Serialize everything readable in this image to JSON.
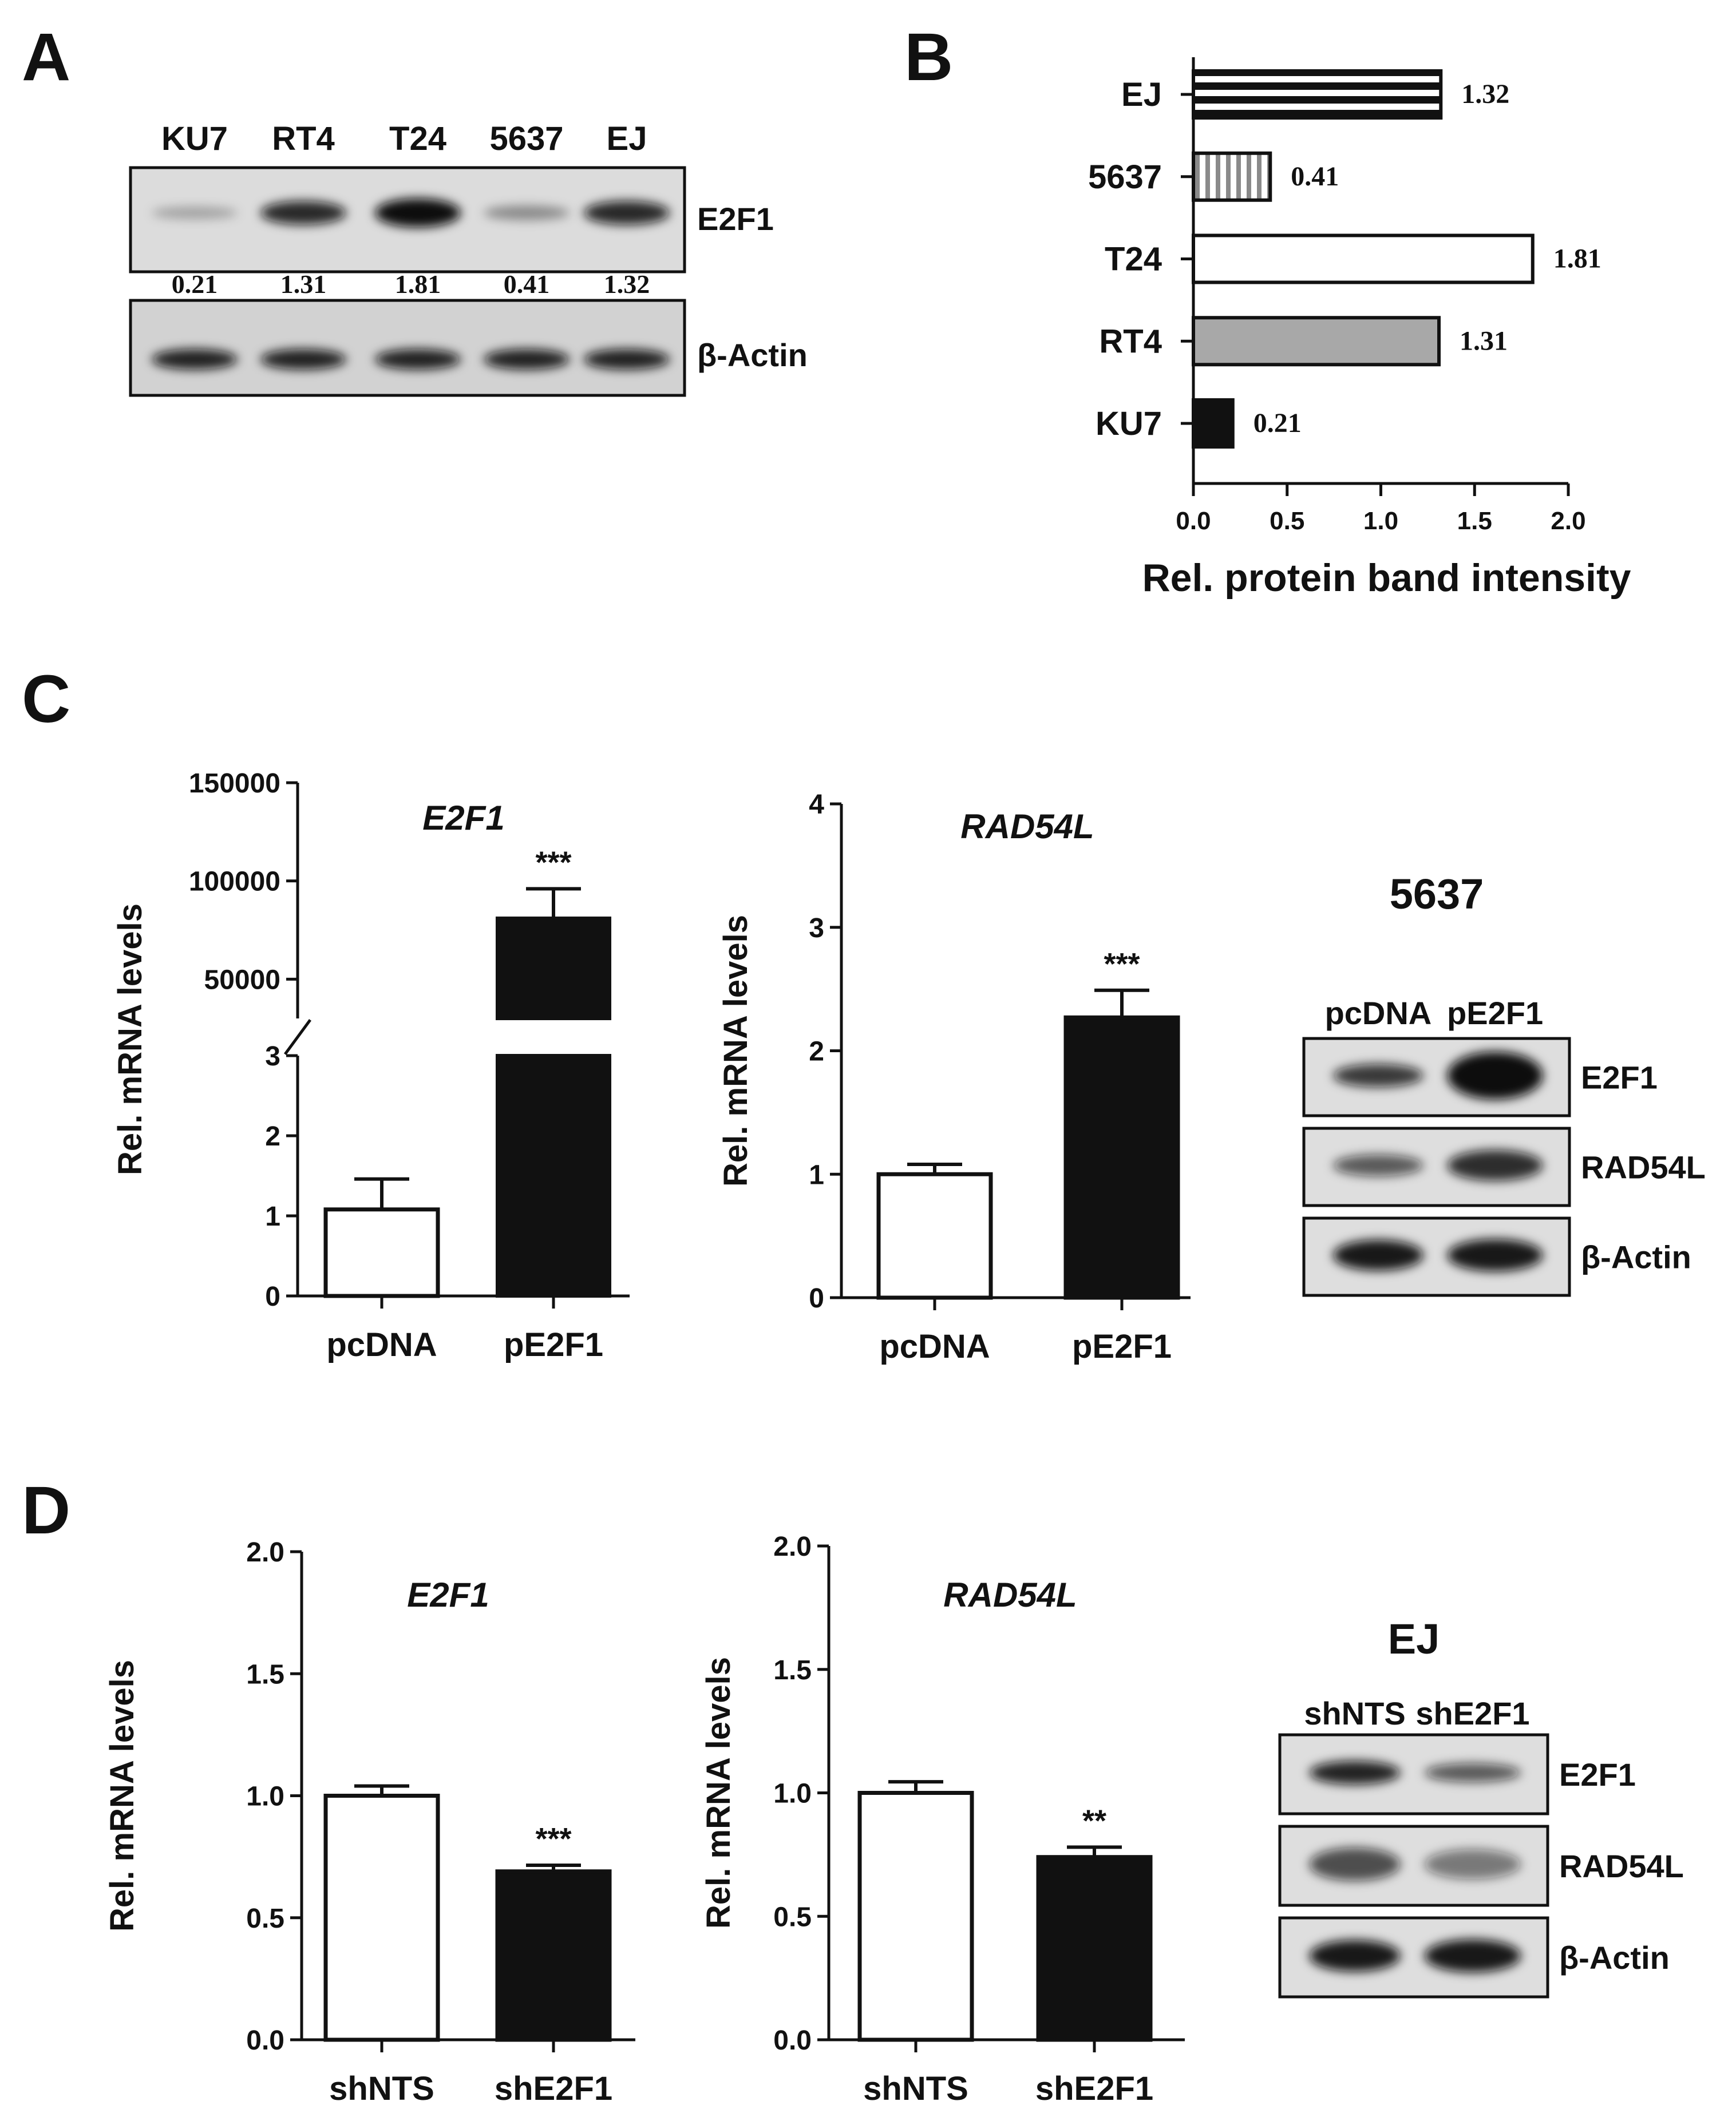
{
  "panels": {
    "A": {
      "label": "A",
      "lanes": [
        "KU7",
        "RT4",
        "T24",
        "5637",
        "EJ"
      ],
      "blots": [
        "E2F1",
        "β-Actin"
      ],
      "quant": [
        "0.21",
        "1.31",
        "1.81",
        "0.41",
        "1.32"
      ]
    },
    "C": {
      "label": "C",
      "blot_title": "5637",
      "blot_lanes": [
        "pcDNA",
        "pE2F1"
      ],
      "blots": [
        "E2F1",
        "RAD54L",
        "β-Actin"
      ]
    },
    "D": {
      "label": "D",
      "blot_title": "EJ",
      "blot_lanes": [
        "shNTS",
        "shE2F1"
      ],
      "blots": [
        "E2F1",
        "RAD54L",
        "β-Actin"
      ]
    }
  },
  "chart_data": [
    {
      "id": "B",
      "panel": "B",
      "type": "bar",
      "orientation": "horizontal",
      "categories": [
        "KU7",
        "RT4",
        "T24",
        "5637",
        "EJ"
      ],
      "values": [
        0.21,
        1.31,
        1.81,
        0.41,
        1.32
      ],
      "value_labels": [
        "0.21",
        "1.31",
        "1.81",
        "0.41",
        "1.32"
      ],
      "fills": [
        "solid-black",
        "gray",
        "white",
        "vertical-stripes",
        "horizontal-stripes"
      ],
      "xlabel": "Rel. protein band intensity",
      "xlim": [
        0,
        2.0
      ],
      "xticks": [
        "0.0",
        "0.5",
        "1.0",
        "1.5",
        "2.0"
      ]
    },
    {
      "id": "C1",
      "panel": "C",
      "type": "bar",
      "title": "E2F1",
      "categories": [
        "pcDNA",
        "pE2F1"
      ],
      "values": [
        1.08,
        81000
      ],
      "errors": [
        0.38,
        15000
      ],
      "significance": [
        "",
        "***"
      ],
      "fills": [
        "white",
        "black"
      ],
      "ylabel": "Rel. mRNA levels",
      "broken_axis": {
        "lower": {
          "ylim": [
            0,
            3
          ],
          "ticks": [
            "0",
            "1",
            "2",
            "3"
          ]
        },
        "upper": {
          "ylim": [
            30000,
            150000
          ],
          "ticks": [
            "50000",
            "100000",
            "150000"
          ]
        }
      }
    },
    {
      "id": "C2",
      "panel": "C",
      "type": "bar",
      "title": "RAD54L",
      "categories": [
        "pcDNA",
        "pE2F1"
      ],
      "values": [
        1.0,
        2.27
      ],
      "errors": [
        0.08,
        0.22
      ],
      "significance": [
        "",
        "***"
      ],
      "fills": [
        "white",
        "black"
      ],
      "ylabel": "Rel. mRNA levels",
      "ylim": [
        0,
        4
      ],
      "yticks": [
        "0",
        "1",
        "2",
        "3",
        "4"
      ]
    },
    {
      "id": "D1",
      "panel": "D",
      "type": "bar",
      "title": "E2F1",
      "categories": [
        "shNTS",
        "shE2F1"
      ],
      "values": [
        1.0,
        0.69
      ],
      "errors": [
        0.04,
        0.025
      ],
      "significance": [
        "",
        "***"
      ],
      "fills": [
        "white",
        "black"
      ],
      "ylabel": "Rel. mRNA levels",
      "ylim": [
        0,
        2.0
      ],
      "yticks": [
        "0.0",
        "0.5",
        "1.0",
        "1.5",
        "2.0"
      ]
    },
    {
      "id": "D2",
      "panel": "D",
      "type": "bar",
      "title": "RAD54L",
      "categories": [
        "shNTS",
        "shE2F1"
      ],
      "values": [
        1.0,
        0.74
      ],
      "errors": [
        0.045,
        0.04
      ],
      "significance": [
        "",
        "**"
      ],
      "fills": [
        "white",
        "black"
      ],
      "ylabel": "Rel. mRNA levels",
      "ylim": [
        0,
        2.0
      ],
      "yticks": [
        "0.0",
        "0.5",
        "1.0",
        "1.5",
        "2.0"
      ]
    }
  ]
}
